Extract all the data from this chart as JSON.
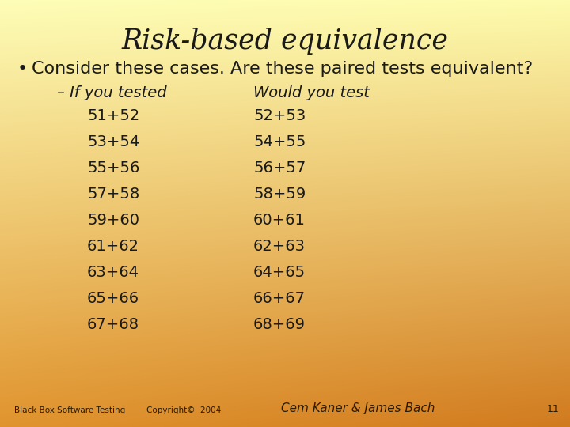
{
  "title": "Risk-based equivalence",
  "bullet": "Consider these cases. Are these paired tests equivalent?",
  "sub_label_left": "– If you tested",
  "sub_label_right": "Would you test",
  "left_col": [
    "51+52",
    "53+54",
    "55+56",
    "57+58",
    "59+60",
    "61+62",
    "63+64",
    "65+66",
    "67+68"
  ],
  "right_col": [
    "52+53",
    "54+55",
    "56+57",
    "58+59",
    "60+61",
    "62+63",
    "64+65",
    "66+67",
    "68+69"
  ],
  "footer_left": "Black Box Software Testing",
  "footer_center": "Copyright©  2004",
  "footer_right": "Cem Kaner & James Bach",
  "footer_page": "11",
  "text_color": "#1a1a1a",
  "footer_color": "#2a1a00",
  "tl": [
    0.995,
    0.995,
    0.72
  ],
  "tr": [
    0.995,
    0.985,
    0.68
  ],
  "bl": [
    0.88,
    0.58,
    0.18
  ],
  "br": [
    0.82,
    0.48,
    0.12
  ]
}
